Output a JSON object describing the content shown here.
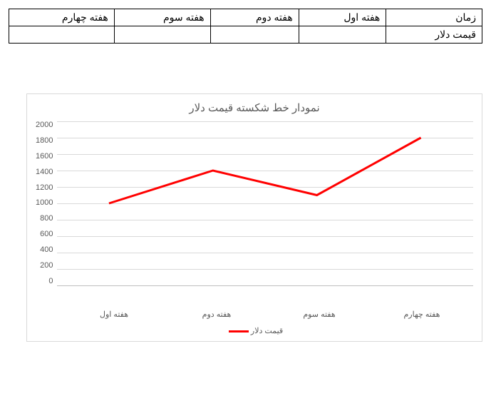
{
  "table": {
    "header": [
      "زمان",
      "هفته اول",
      "هفته دوم",
      "هفته سوم",
      "هفته چهارم"
    ],
    "row_label": "قیمت دلار",
    "row_values": [
      "",
      "",
      "",
      ""
    ]
  },
  "chart": {
    "type": "line",
    "title": "نمودار خط شکسته قیمت دلار",
    "title_fontsize": 15,
    "title_color": "#595959",
    "categories": [
      "هفته اول",
      "هفته دوم",
      "هفته سوم",
      "هفته چهارم"
    ],
    "values": [
      1000,
      1400,
      1100,
      1800
    ],
    "series_name": "قیمت دلار",
    "line_color": "#ff0000",
    "line_width": 3,
    "ylim": [
      0,
      2000
    ],
    "ytick_step": 200,
    "yticks": [
      2000,
      1800,
      1600,
      1400,
      1200,
      1000,
      800,
      600,
      400,
      200,
      0
    ],
    "grid_color": "#d9d9d9",
    "axis_color": "#bfbfbf",
    "background_color": "#ffffff",
    "border_color": "#d9d9d9",
    "tick_fontsize": 11,
    "tick_color": "#595959",
    "legend_position": "bottom"
  }
}
